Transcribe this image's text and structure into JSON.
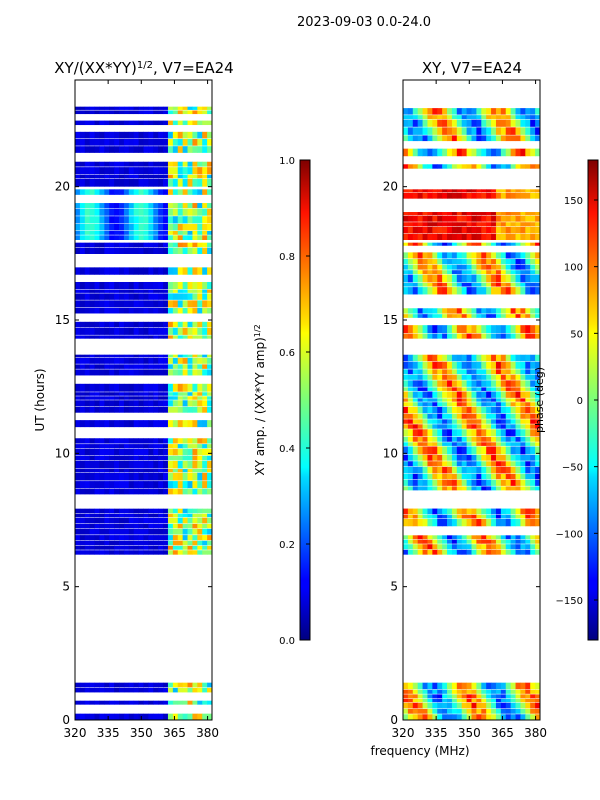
{
  "figure": {
    "suptitle": "2023-09-03 0.0-24.0",
    "xlabel_shared": "frequency (MHz)"
  },
  "chart_data": [
    {
      "type": "heatmap",
      "title_main": "XY/(XX*YY)",
      "title_sup": "1/2",
      "title_rest": ", V7=EA24",
      "ylabel": "UT (hours)",
      "xlim": [
        320,
        382
      ],
      "ylim": [
        0,
        24
      ],
      "xticks": [
        320,
        335,
        350,
        365,
        380
      ],
      "yticks": [
        0,
        5,
        10,
        15,
        20
      ],
      "data_blocks_hours": [
        [
          0.0,
          1.4
        ],
        [
          6.2,
          13.7
        ],
        [
          14.3,
          17.9
        ],
        [
          18.0,
          19.9
        ],
        [
          20.0,
          23.0
        ]
      ],
      "colorbar": {
        "label": "XY amp. / (XX*YY amp)",
        "label_sup": "1/2",
        "range": [
          0.0,
          1.0
        ],
        "ticks": [
          "0.0",
          "0.2",
          "0.4",
          "0.6",
          "0.8",
          "1.0"
        ],
        "colormap": "jet"
      }
    },
    {
      "type": "heatmap",
      "title": "XY, V7=EA24",
      "xlim": [
        320,
        382
      ],
      "ylim": [
        0,
        24
      ],
      "xticks": [
        320,
        335,
        350,
        365,
        380
      ],
      "yticks": [
        0,
        5,
        10,
        15,
        20
      ],
      "data_blocks_hours": [
        [
          0.0,
          1.4
        ],
        [
          6.2,
          13.7
        ],
        [
          14.3,
          17.9
        ],
        [
          18.0,
          19.9
        ],
        [
          20.0,
          23.0
        ]
      ],
      "colorbar": {
        "label": "phase (deg)",
        "range": [
          -180,
          180
        ],
        "ticks": [
          "−150",
          "−100",
          "−50",
          "0",
          "50",
          "100",
          "150"
        ],
        "colormap": "jet"
      }
    }
  ]
}
